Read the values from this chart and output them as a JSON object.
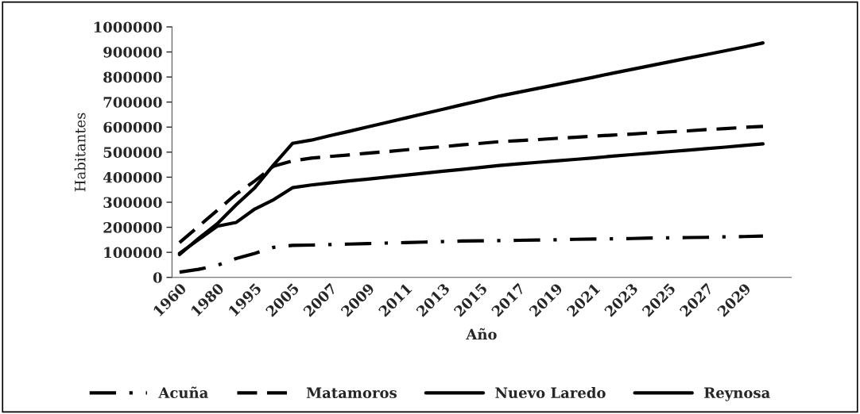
{
  "chart_data": {
    "type": "line",
    "xlabel": "Año",
    "ylabel": "Habitantes",
    "categories": [
      "1960",
      null,
      "1980",
      null,
      "1995",
      null,
      "2005",
      null,
      "2007",
      null,
      "2009",
      null,
      "2011",
      null,
      "2013",
      null,
      "2015",
      null,
      "2017",
      null,
      "2019",
      null,
      "2021",
      null,
      "2023",
      null,
      "2025",
      null,
      "2027",
      null,
      "2029",
      null
    ],
    "series": [
      {
        "name": "Acuña",
        "color": "#000000",
        "line_style": "dashdot",
        "values": [
          21000,
          32000,
          48000,
          75000,
          96000,
          120000,
          128000,
          129000,
          131000,
          133000,
          135000,
          137000,
          139000,
          141000,
          143000,
          145000,
          146000,
          147000,
          148000,
          149000,
          150000,
          152000,
          153000,
          154000,
          155000,
          157000,
          158000,
          159000,
          160000,
          162000,
          163000,
          165000
        ]
      },
      {
        "name": "Matamoros",
        "color": "#000000",
        "line_style": "dashed",
        "values": [
          139000,
          203000,
          267000,
          332000,
          385000,
          444000,
          465000,
          476000,
          483000,
          489000,
          496000,
          502000,
          509000,
          516000,
          522000,
          529000,
          535000,
          542000,
          546000,
          550000,
          555000,
          559000,
          564000,
          568000,
          572000,
          577000,
          581000,
          585000,
          590000,
          594000,
          599000,
          603000
        ]
      },
      {
        "name": "Nuevo Laredo",
        "color": "#000000",
        "line_style": "solid",
        "values": [
          96000,
          150000,
          204000,
          219000,
          273000,
          310000,
          358000,
          369000,
          377000,
          385000,
          392000,
          400000,
          408000,
          416000,
          424000,
          431000,
          439000,
          447000,
          453000,
          459000,
          465000,
          471000,
          477000,
          484000,
          490000,
          496000,
          502000,
          508000,
          514000,
          520000,
          527000,
          533000
        ]
      },
      {
        "name": "Reynosa",
        "color": "#000000",
        "line_style": "solid",
        "values": [
          91000,
          155000,
          214000,
          289000,
          358000,
          449000,
          535000,
          548000,
          566000,
          583000,
          601000,
          618000,
          636000,
          654000,
          671000,
          689000,
          706000,
          724000,
          739000,
          754000,
          769000,
          784000,
          799000,
          815000,
          830000,
          845000,
          860000,
          875000,
          890000,
          905000,
          920000,
          936000
        ]
      }
    ],
    "ylim": [
      0,
      1000000
    ],
    "yticks": [
      0,
      100000,
      200000,
      300000,
      400000,
      500000,
      600000,
      700000,
      800000,
      900000,
      1000000
    ],
    "grid": false,
    "legend": "bottom",
    "marker": "none"
  }
}
